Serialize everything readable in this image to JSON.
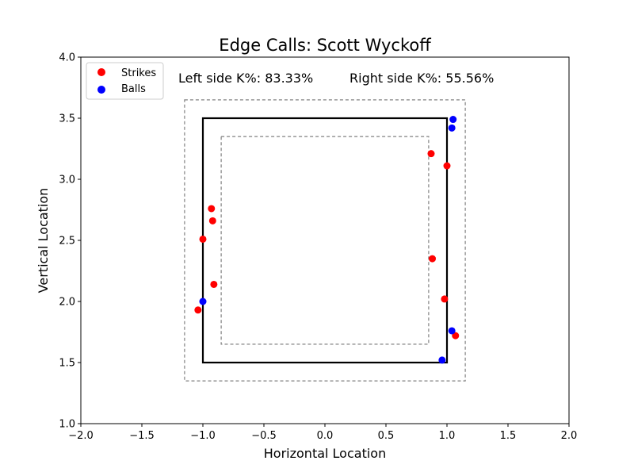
{
  "chart_data": {
    "type": "scatter",
    "title": "Edge Calls: Scott Wyckoff",
    "xlabel": "Horizontal Location",
    "ylabel": "Vertical Location",
    "xlim": [
      -2.0,
      2.0
    ],
    "ylim": [
      1.0,
      4.0
    ],
    "x_ticks": [
      "−2.0",
      "−1.5",
      "−1.0",
      "−0.5",
      "0.0",
      "0.5",
      "1.0",
      "1.5",
      "2.0"
    ],
    "y_ticks": [
      "1.0",
      "1.5",
      "2.0",
      "2.5",
      "3.0",
      "3.5",
      "4.0"
    ],
    "grid": false,
    "legend_position": "top-left",
    "annotations": {
      "left": "Left side K%: 83.33%",
      "right": "Right side K%: 55.56%"
    },
    "zones": {
      "strike_zone": {
        "x": [
          -1.0,
          1.0
        ],
        "y": [
          1.5,
          3.5
        ],
        "style": "solid"
      },
      "outer_zone": {
        "x": [
          -1.15,
          1.15
        ],
        "y": [
          1.35,
          3.65
        ],
        "style": "dashed"
      },
      "inner_zone": {
        "x": [
          -0.85,
          0.85
        ],
        "y": [
          1.65,
          3.35
        ],
        "style": "dashed"
      }
    },
    "series": [
      {
        "name": "Strikes",
        "color": "#ff0000",
        "points": [
          {
            "x": -0.93,
            "y": 2.76
          },
          {
            "x": -0.92,
            "y": 2.66
          },
          {
            "x": -1.0,
            "y": 2.51
          },
          {
            "x": -0.91,
            "y": 2.14
          },
          {
            "x": -1.04,
            "y": 1.93
          },
          {
            "x": 0.87,
            "y": 3.21
          },
          {
            "x": 1.0,
            "y": 3.11
          },
          {
            "x": 0.88,
            "y": 2.35
          },
          {
            "x": 0.98,
            "y": 2.02
          },
          {
            "x": 1.07,
            "y": 1.72
          }
        ]
      },
      {
        "name": "Balls",
        "color": "#0000ff",
        "points": [
          {
            "x": 1.05,
            "y": 3.49
          },
          {
            "x": 1.04,
            "y": 3.42
          },
          {
            "x": -1.0,
            "y": 2.0
          },
          {
            "x": 1.04,
            "y": 1.76
          },
          {
            "x": 0.96,
            "y": 1.52
          }
        ]
      }
    ]
  }
}
